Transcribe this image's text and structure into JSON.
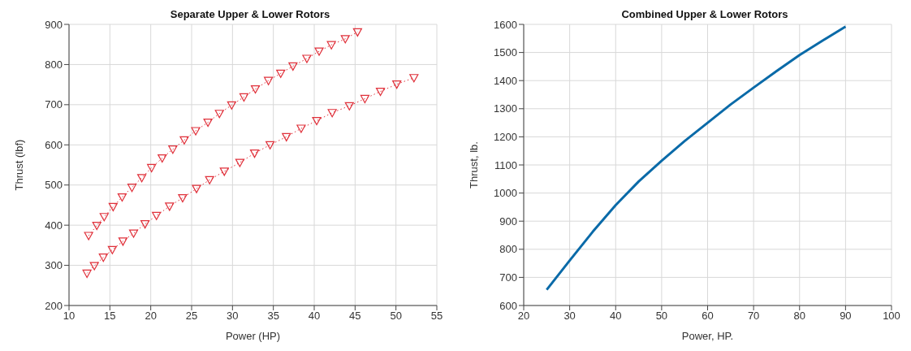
{
  "chart_data": [
    {
      "type": "line",
      "title": "Separate Upper & Lower Rotors",
      "xlabel": "Power (HP)",
      "ylabel": "Thrust (lbf)",
      "xlim": [
        10,
        55
      ],
      "xticks": [
        10,
        15,
        20,
        25,
        30,
        35,
        40,
        45,
        50,
        55
      ],
      "ylim": [
        200,
        900
      ],
      "yticks": [
        200,
        300,
        400,
        500,
        600,
        700,
        800,
        900
      ],
      "grid": true,
      "marker": "triangle",
      "line_style": "dotted",
      "series": [
        {
          "color": "#e0303a",
          "x": [
            12.4,
            13.4,
            14.3,
            15.4,
            16.5,
            17.7,
            18.9,
            20.1,
            21.4,
            22.7,
            24.1,
            25.5,
            27.0,
            28.4,
            29.9,
            31.4,
            32.8,
            34.4,
            35.9,
            37.4,
            39.1,
            40.6,
            42.1,
            43.8,
            45.3
          ],
          "values": [
            374,
            399,
            421,
            446,
            470,
            494,
            518,
            543,
            567,
            589,
            612,
            635,
            656,
            678,
            699,
            719,
            739,
            760,
            778,
            796,
            815,
            833,
            849,
            864,
            881
          ]
        },
        {
          "color": "#e0303a",
          "x": [
            12.2,
            13.1,
            14.2,
            15.3,
            16.6,
            17.9,
            19.3,
            20.7,
            22.3,
            23.9,
            25.6,
            27.2,
            29.0,
            30.9,
            32.7,
            34.6,
            36.6,
            38.4,
            40.3,
            42.2,
            44.3,
            46.2,
            48.1,
            50.1,
            52.2
          ],
          "values": [
            280,
            299,
            320,
            339,
            360,
            380,
            403,
            424,
            447,
            468,
            491,
            513,
            534,
            556,
            579,
            600,
            620,
            641,
            660,
            680,
            697,
            715,
            733,
            751,
            767
          ]
        }
      ]
    },
    {
      "type": "line",
      "title": "Combined Upper & Lower Rotors",
      "xlabel": "Power, HP.",
      "ylabel": "Thrust, lb.",
      "xlim": [
        20,
        100
      ],
      "xticks": [
        20,
        30,
        40,
        50,
        60,
        70,
        80,
        90,
        100
      ],
      "ylim": [
        600,
        1600
      ],
      "yticks": [
        600,
        700,
        800,
        900,
        1000,
        1100,
        1200,
        1300,
        1400,
        1500,
        1600
      ],
      "grid": true,
      "marker": "none",
      "line_style": "solid",
      "series": [
        {
          "color": "#0a6aa8",
          "x": [
            25,
            30,
            35,
            40,
            45,
            50,
            55,
            60,
            65,
            70,
            75,
            80,
            85,
            90
          ],
          "values": [
            656,
            760,
            862,
            957,
            1041,
            1115,
            1185,
            1250,
            1315,
            1375,
            1434,
            1491,
            1542,
            1592
          ]
        }
      ]
    }
  ]
}
